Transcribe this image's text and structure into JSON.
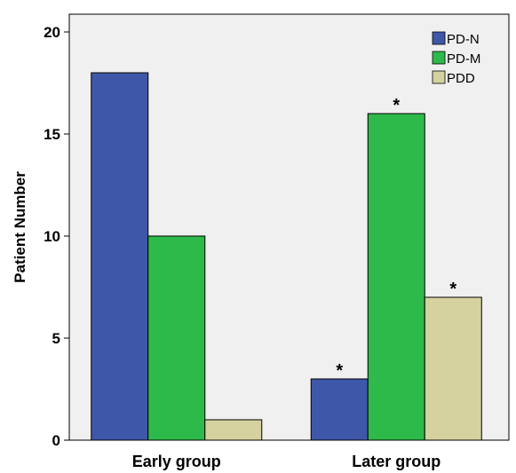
{
  "chart_data": {
    "type": "bar",
    "title": "",
    "xlabel": "",
    "ylabel": "Patient Number",
    "ylim": [
      0,
      20
    ],
    "yticks": [
      0,
      5,
      10,
      15,
      20
    ],
    "categories": [
      "Early group",
      "Later group"
    ],
    "series": [
      {
        "name": "PD-N",
        "color": "#3F57A8",
        "values": [
          18,
          3
        ],
        "annotations": [
          "",
          "*"
        ]
      },
      {
        "name": "PD-M",
        "color": "#2EBA4A",
        "values": [
          10,
          16
        ],
        "annotations": [
          "",
          "*"
        ]
      },
      {
        "name": "PDD",
        "color": "#D6D29F",
        "values": [
          1,
          7
        ],
        "annotations": [
          "",
          "*"
        ]
      }
    ],
    "grid": false,
    "legend_position": "top-right",
    "plot_background": "#f0f0f0"
  }
}
